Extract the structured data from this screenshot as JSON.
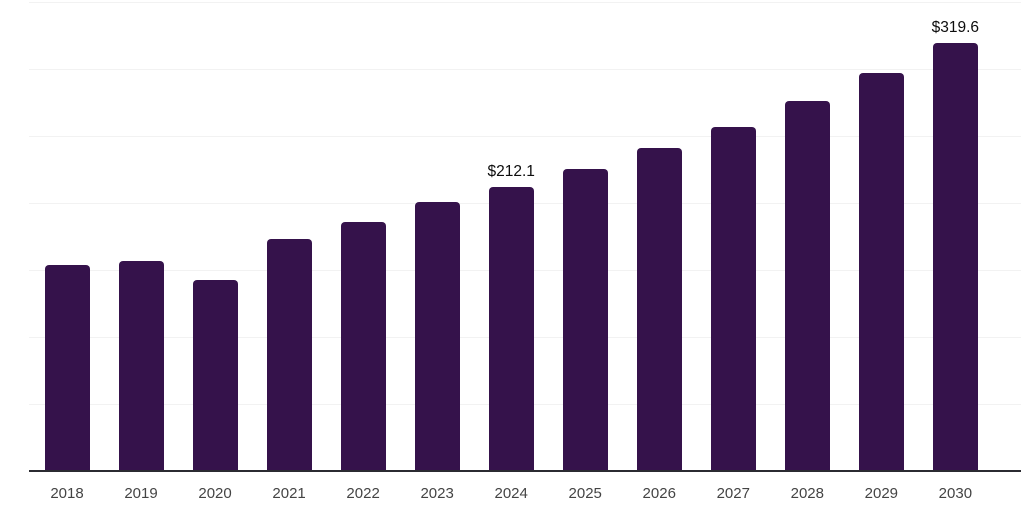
{
  "chart_data": {
    "type": "bar",
    "title": "",
    "xlabel": "",
    "ylabel": "",
    "categories": [
      "2018",
      "2019",
      "2020",
      "2021",
      "2022",
      "2023",
      "2024",
      "2025",
      "2026",
      "2027",
      "2028",
      "2029",
      "2030"
    ],
    "values": [
      154,
      157,
      142.5,
      173,
      186,
      200.5,
      212.1,
      225.5,
      241,
      257,
      276,
      297,
      319.6
    ],
    "data_labels": {
      "2024": "$212.1",
      "2030": "$319.6"
    },
    "ylim": [
      0,
      350
    ],
    "gridline_step": 50,
    "grid": true,
    "legend": false,
    "colors": {
      "bar": "#35124B",
      "background": "#ffffff",
      "gridline": "#f2f2f2",
      "axis_line": "#2b2b31",
      "tick_label": "#444444",
      "data_label": "#0d0d0d"
    }
  }
}
